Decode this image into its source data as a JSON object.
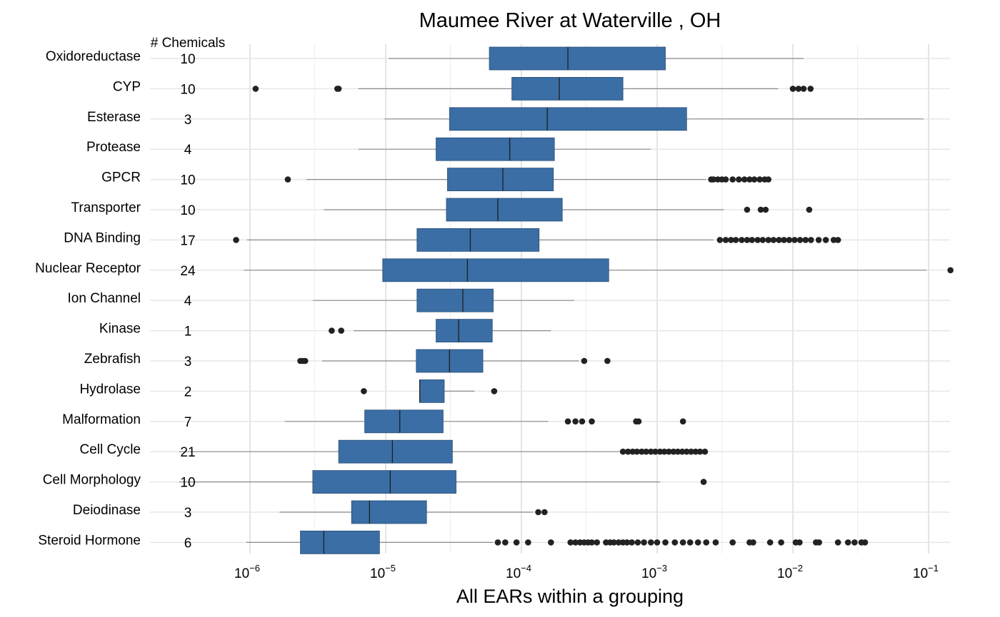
{
  "chart_data": {
    "type": "boxplot",
    "orientation": "horizontal",
    "title": "Maumee River at Waterville , OH",
    "xlabel": "All EARs within a grouping",
    "x_scale": "log10",
    "xlim": [
      2e-07,
      0.2
    ],
    "x_tick_values": [
      1e-06,
      1e-05,
      0.0001,
      0.001,
      0.01,
      0.1
    ],
    "x_ticks": [
      {
        "base": "10",
        "exp": "−6"
      },
      {
        "base": "10",
        "exp": "−5"
      },
      {
        "base": "10",
        "exp": "−4"
      },
      {
        "base": "10",
        "exp": "−3"
      },
      {
        "base": "10",
        "exp": "−2"
      },
      {
        "base": "10",
        "exp": "−1"
      }
    ],
    "count_header": "# Chemicals",
    "grid": true,
    "box_color": "#3a6ea5",
    "outlier_color": "#222222",
    "groups": [
      {
        "name": "Oxidoreductase",
        "count": "10",
        "whisker_low": 1.05e-05,
        "q1": 5.8e-05,
        "median": 0.00022,
        "q3": 0.00115,
        "whisker_high": 0.012,
        "outliers": []
      },
      {
        "name": "CYP",
        "count": "10",
        "whisker_low": 6.3e-06,
        "q1": 8.5e-05,
        "median": 0.00019,
        "q3": 0.00056,
        "whisker_high": 0.0078,
        "outliers": [
          1.1e-06,
          4.4e-06,
          4.5e-06,
          0.01,
          0.011,
          0.012,
          0.0135
        ]
      },
      {
        "name": "Esterase",
        "count": "3",
        "whisker_low": 9.8e-06,
        "q1": 2.95e-05,
        "median": 0.000155,
        "q3": 0.00165,
        "whisker_high": 0.092,
        "outliers": []
      },
      {
        "name": "Protease",
        "count": "4",
        "whisker_low": 6.3e-06,
        "q1": 2.35e-05,
        "median": 8.2e-05,
        "q3": 0.000175,
        "whisker_high": 0.0009,
        "outliers": []
      },
      {
        "name": "GPCR",
        "count": "10",
        "whisker_low": 2.6e-06,
        "q1": 2.85e-05,
        "median": 7.3e-05,
        "q3": 0.000172,
        "whisker_high": 0.0023,
        "outliers": [
          1.9e-06,
          0.0025,
          0.0026,
          0.0028,
          0.003,
          0.0032,
          0.0036,
          0.004,
          0.0044,
          0.0048,
          0.0052,
          0.0057,
          0.0062,
          0.0066
        ]
      },
      {
        "name": "Transporter",
        "count": "10",
        "whisker_low": 3.5e-06,
        "q1": 2.8e-05,
        "median": 6.7e-05,
        "q3": 0.0002,
        "whisker_high": 0.0031,
        "outliers": [
          0.0046,
          0.0058,
          0.0063,
          0.0132
        ]
      },
      {
        "name": "DNA Binding",
        "count": "17",
        "whisker_low": 9.5e-07,
        "q1": 1.7e-05,
        "median": 4.2e-05,
        "q3": 0.000135,
        "whisker_high": 0.0026,
        "outliers": [
          7.9e-07,
          0.0029,
          0.0032,
          0.0035,
          0.0038,
          0.0042,
          0.0046,
          0.005,
          0.0055,
          0.006,
          0.0066,
          0.0072,
          0.0079,
          0.0086,
          0.0094,
          0.0103,
          0.0113,
          0.0124,
          0.0136,
          0.0155,
          0.0175,
          0.02,
          0.0215
        ]
      },
      {
        "name": "Nuclear Receptor",
        "count": "24",
        "whisker_low": 9e-07,
        "q1": 9.5e-06,
        "median": 4e-05,
        "q3": 0.00044,
        "whisker_high": 0.097,
        "outliers": [
          0.145
        ]
      },
      {
        "name": "Ion Channel",
        "count": "4",
        "whisker_low": 2.9e-06,
        "q1": 1.7e-05,
        "median": 3.7e-05,
        "q3": 6.2e-05,
        "whisker_high": 0.000245,
        "outliers": []
      },
      {
        "name": "Kinase",
        "count": "1",
        "whisker_low": 5.8e-06,
        "q1": 2.35e-05,
        "median": 3.45e-05,
        "q3": 6.1e-05,
        "whisker_high": 0.000165,
        "outliers": [
          4e-06,
          4.7e-06
        ]
      },
      {
        "name": "Zebrafish",
        "count": "3",
        "whisker_low": 3.4e-06,
        "q1": 1.68e-05,
        "median": 2.95e-05,
        "q3": 5.2e-05,
        "whisker_high": 0.000265,
        "outliers": [
          2.35e-06,
          2.45e-06,
          2.55e-06,
          0.00029,
          0.00043
        ]
      },
      {
        "name": "Hydrolase",
        "count": "2",
        "whisker_low": 1.78e-05,
        "q1": 1.78e-05,
        "median": 1.78e-05,
        "q3": 2.7e-05,
        "whisker_high": 4.5e-05,
        "outliers": [
          6.9e-06,
          6.3e-05
        ]
      },
      {
        "name": "Malformation",
        "count": "7",
        "whisker_low": 1.8e-06,
        "q1": 7e-06,
        "median": 1.27e-05,
        "q3": 2.65e-05,
        "whisker_high": 0.000158,
        "outliers": [
          0.00022,
          0.00025,
          0.00028,
          0.00033,
          0.0007,
          0.00073,
          0.00155
        ]
      },
      {
        "name": "Cell Cycle",
        "count": "21",
        "whisker_low": 3e-07,
        "q1": 4.5e-06,
        "median": 1.12e-05,
        "q3": 3.1e-05,
        "whisker_high": 0.00053,
        "outliers": [
          0.00056,
          0.00061,
          0.00066,
          0.00071,
          0.00077,
          0.00083,
          0.0009,
          0.00097,
          0.00105,
          0.00113,
          0.00122,
          0.00132,
          0.00142,
          0.00153,
          0.00165,
          0.00178,
          0.00192,
          0.00207,
          0.00225
        ]
      },
      {
        "name": "Cell Morphology",
        "count": "10",
        "whisker_low": 3e-07,
        "q1": 2.9e-06,
        "median": 1.08e-05,
        "q3": 3.3e-05,
        "whisker_high": 0.00105,
        "outliers": [
          0.0022
        ]
      },
      {
        "name": "Deiodinase",
        "count": "3",
        "whisker_low": 1.65e-06,
        "q1": 5.6e-06,
        "median": 7.6e-06,
        "q3": 2e-05,
        "whisker_high": 0.000122,
        "outliers": [
          0.000133,
          0.000148
        ]
      },
      {
        "name": "Steroid Hormone",
        "count": "6",
        "whisker_low": 9.4e-07,
        "q1": 2.35e-06,
        "median": 3.5e-06,
        "q3": 9e-06,
        "whisker_high": 6.2e-05,
        "outliers": [
          6.7e-05,
          7.6e-05,
          9.2e-05,
          0.000112,
          0.000165,
          0.00023,
          0.00025,
          0.00027,
          0.00029,
          0.00031,
          0.00033,
          0.00036,
          0.00042,
          0.00045,
          0.00048,
          0.00052,
          0.00056,
          0.0006,
          0.00065,
          0.00072,
          0.0008,
          0.0009,
          0.001,
          0.00115,
          0.00135,
          0.00155,
          0.00175,
          0.002,
          0.0023,
          0.0027,
          0.0036,
          0.0048,
          0.0051,
          0.0068,
          0.0082,
          0.0105,
          0.0112,
          0.0148,
          0.0156,
          0.0215,
          0.0255,
          0.0285,
          0.032,
          0.034
        ]
      }
    ]
  }
}
